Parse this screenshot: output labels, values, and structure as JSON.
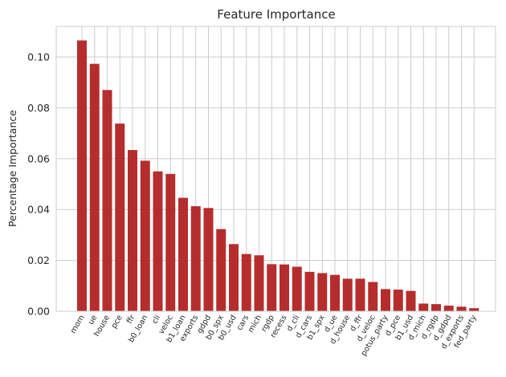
{
  "chart_data": {
    "type": "bar",
    "title": "Feature Importance",
    "xlabel": "",
    "ylabel": "Percentage Importance",
    "ylim": [
      0,
      0.112
    ],
    "yticks": [
      0.0,
      0.02,
      0.04,
      0.06,
      0.08,
      0.1
    ],
    "ytick_labels": [
      "0.00",
      "0.02",
      "0.04",
      "0.06",
      "0.08",
      "0.10"
    ],
    "grid": true,
    "bar_color": "#b22222",
    "grid_color": "#cccccc",
    "categories": [
      "mom",
      "ue",
      "house",
      "pce",
      "ffr",
      "b0_loan",
      "cli",
      "veloc",
      "b1_loan",
      "exports",
      "gdpd",
      "b0_spx",
      "b0_usd",
      "cars",
      "mich",
      "rgdp",
      "recess",
      "d_cli",
      "d_cars",
      "b1_spx",
      "d_ue",
      "d_house",
      "d_ffr",
      "d_veloc",
      "potus_party",
      "d_pce",
      "b1_usd",
      "d_mich",
      "d_rgdp",
      "d_gdpd",
      "d_exports",
      "fed_party"
    ],
    "values": [
      0.1065,
      0.0973,
      0.087,
      0.0738,
      0.0634,
      0.0592,
      0.055,
      0.054,
      0.0446,
      0.0413,
      0.0406,
      0.0323,
      0.0264,
      0.0225,
      0.022,
      0.0185,
      0.0184,
      0.0175,
      0.0155,
      0.015,
      0.0143,
      0.0128,
      0.0128,
      0.0115,
      0.0087,
      0.0085,
      0.008,
      0.003,
      0.0028,
      0.0022,
      0.0018,
      0.0012
    ]
  }
}
